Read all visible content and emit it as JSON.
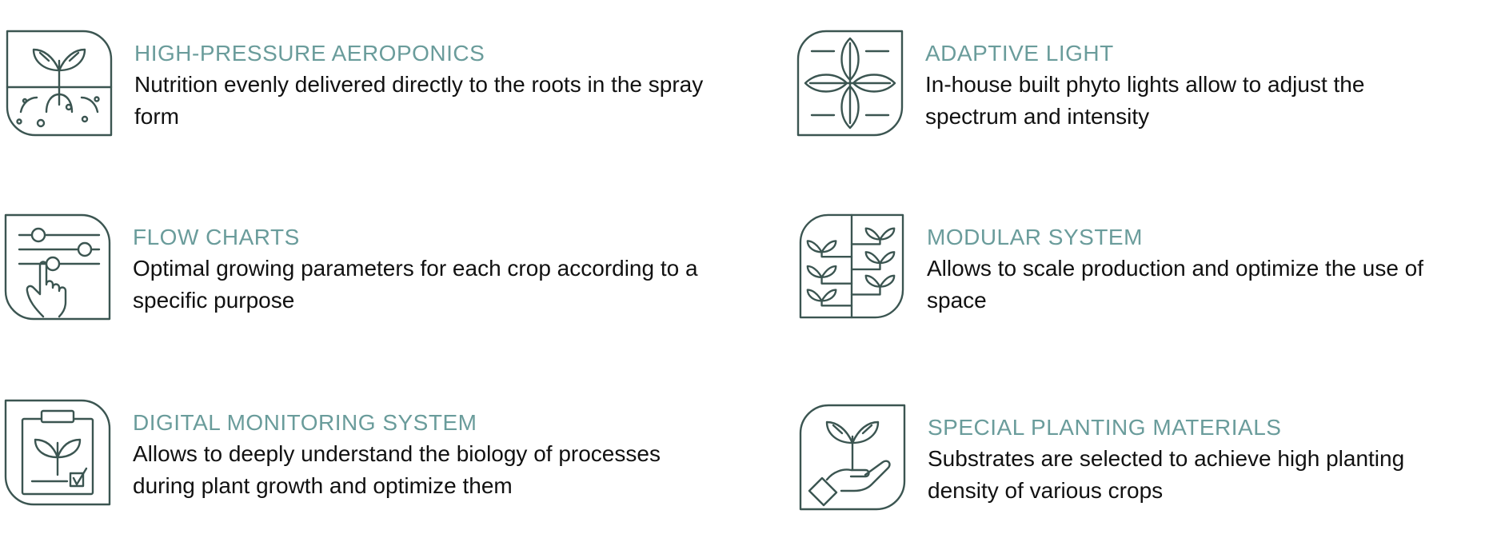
{
  "features": [
    {
      "icon": "aeroponics-icon",
      "title": "HIGH-PRESSURE AEROPONICS",
      "description": "Nutrition evenly delivered directly to the roots in the spray form"
    },
    {
      "icon": "adaptive-light-icon",
      "title": "ADAPTIVE LIGHT",
      "description": "In-house built phyto lights allow to adjust the spectrum and intensity"
    },
    {
      "icon": "flow-charts-icon",
      "title": "FLOW CHARTS",
      "description": "Optimal growing parameters for each crop according to a specific purpose"
    },
    {
      "icon": "modular-system-icon",
      "title": "MODULAR SYSTEM",
      "description": "Allows to scale production and optimize the use of space"
    },
    {
      "icon": "digital-monitoring-icon",
      "title": "DIGITAL MONITORING SYSTEM",
      "description": "Allows to deeply understand the biology of processes during plant growth and optimize them"
    },
    {
      "icon": "planting-materials-icon",
      "title": "SPECIAL PLANTING MATERIALS",
      "description": "Substrates are selected to achieve high planting density of various crops"
    }
  ],
  "colors": {
    "title": "#6a9c9b",
    "text": "#111111",
    "icon_stroke": "#3b5551"
  }
}
